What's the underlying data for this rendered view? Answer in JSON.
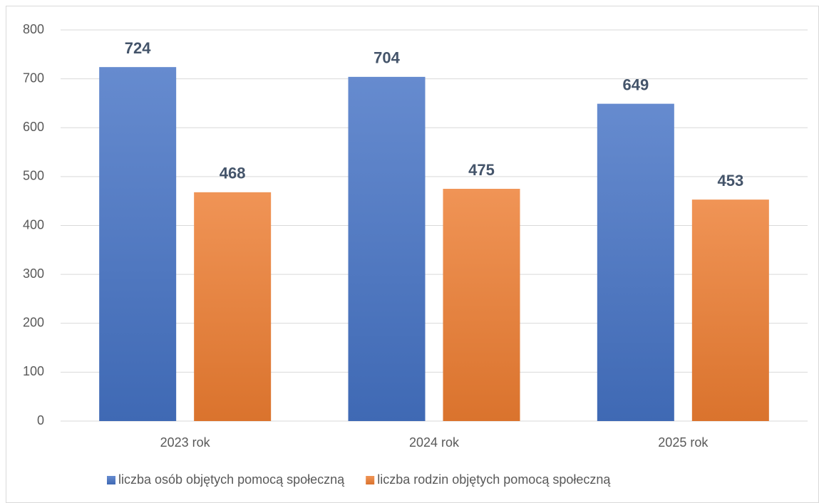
{
  "chart_data": {
    "type": "bar",
    "categories": [
      "2023 rok",
      "2024 rok",
      "2025 rok"
    ],
    "series": [
      {
        "name": "liczba osób objętych pomocą społeczną",
        "color": "#4472c4",
        "values": [
          724,
          704,
          649
        ]
      },
      {
        "name": "liczba rodzin objętych pomocą społeczną",
        "color": "#ed7d31",
        "values": [
          468,
          475,
          453
        ]
      }
    ],
    "ylim": [
      0,
      800
    ],
    "yticks": [
      0,
      100,
      200,
      300,
      400,
      500,
      600,
      700,
      800
    ],
    "grid": true,
    "legend": "bottom",
    "data_labels": true
  }
}
